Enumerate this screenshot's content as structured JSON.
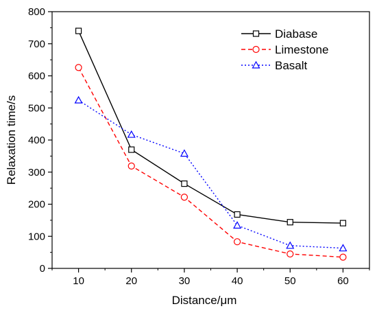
{
  "chart_data": {
    "type": "line",
    "title": "",
    "xlabel": "Distance/μm",
    "ylabel": "Relaxation time/s",
    "x": [
      10,
      20,
      30,
      40,
      50,
      60
    ],
    "xlim": [
      5,
      65
    ],
    "ylim": [
      0,
      800
    ],
    "xticks": [
      10,
      20,
      30,
      40,
      50,
      60
    ],
    "yticks": [
      0,
      100,
      200,
      300,
      400,
      500,
      600,
      700,
      800
    ],
    "grid": false,
    "legend_position": "top-right",
    "series": [
      {
        "name": "Diabase",
        "values": [
          740,
          370,
          264,
          168,
          144,
          141
        ],
        "color": "#000000",
        "marker": "square",
        "line": "solid"
      },
      {
        "name": "Limestone",
        "values": [
          626,
          319,
          222,
          83,
          45,
          35
        ],
        "color": "#ff0000",
        "marker": "circle",
        "line": "dashed"
      },
      {
        "name": "Basalt",
        "values": [
          524,
          417,
          358,
          134,
          71,
          63
        ],
        "color": "#0000ff",
        "marker": "triangle",
        "line": "dotted"
      }
    ]
  }
}
